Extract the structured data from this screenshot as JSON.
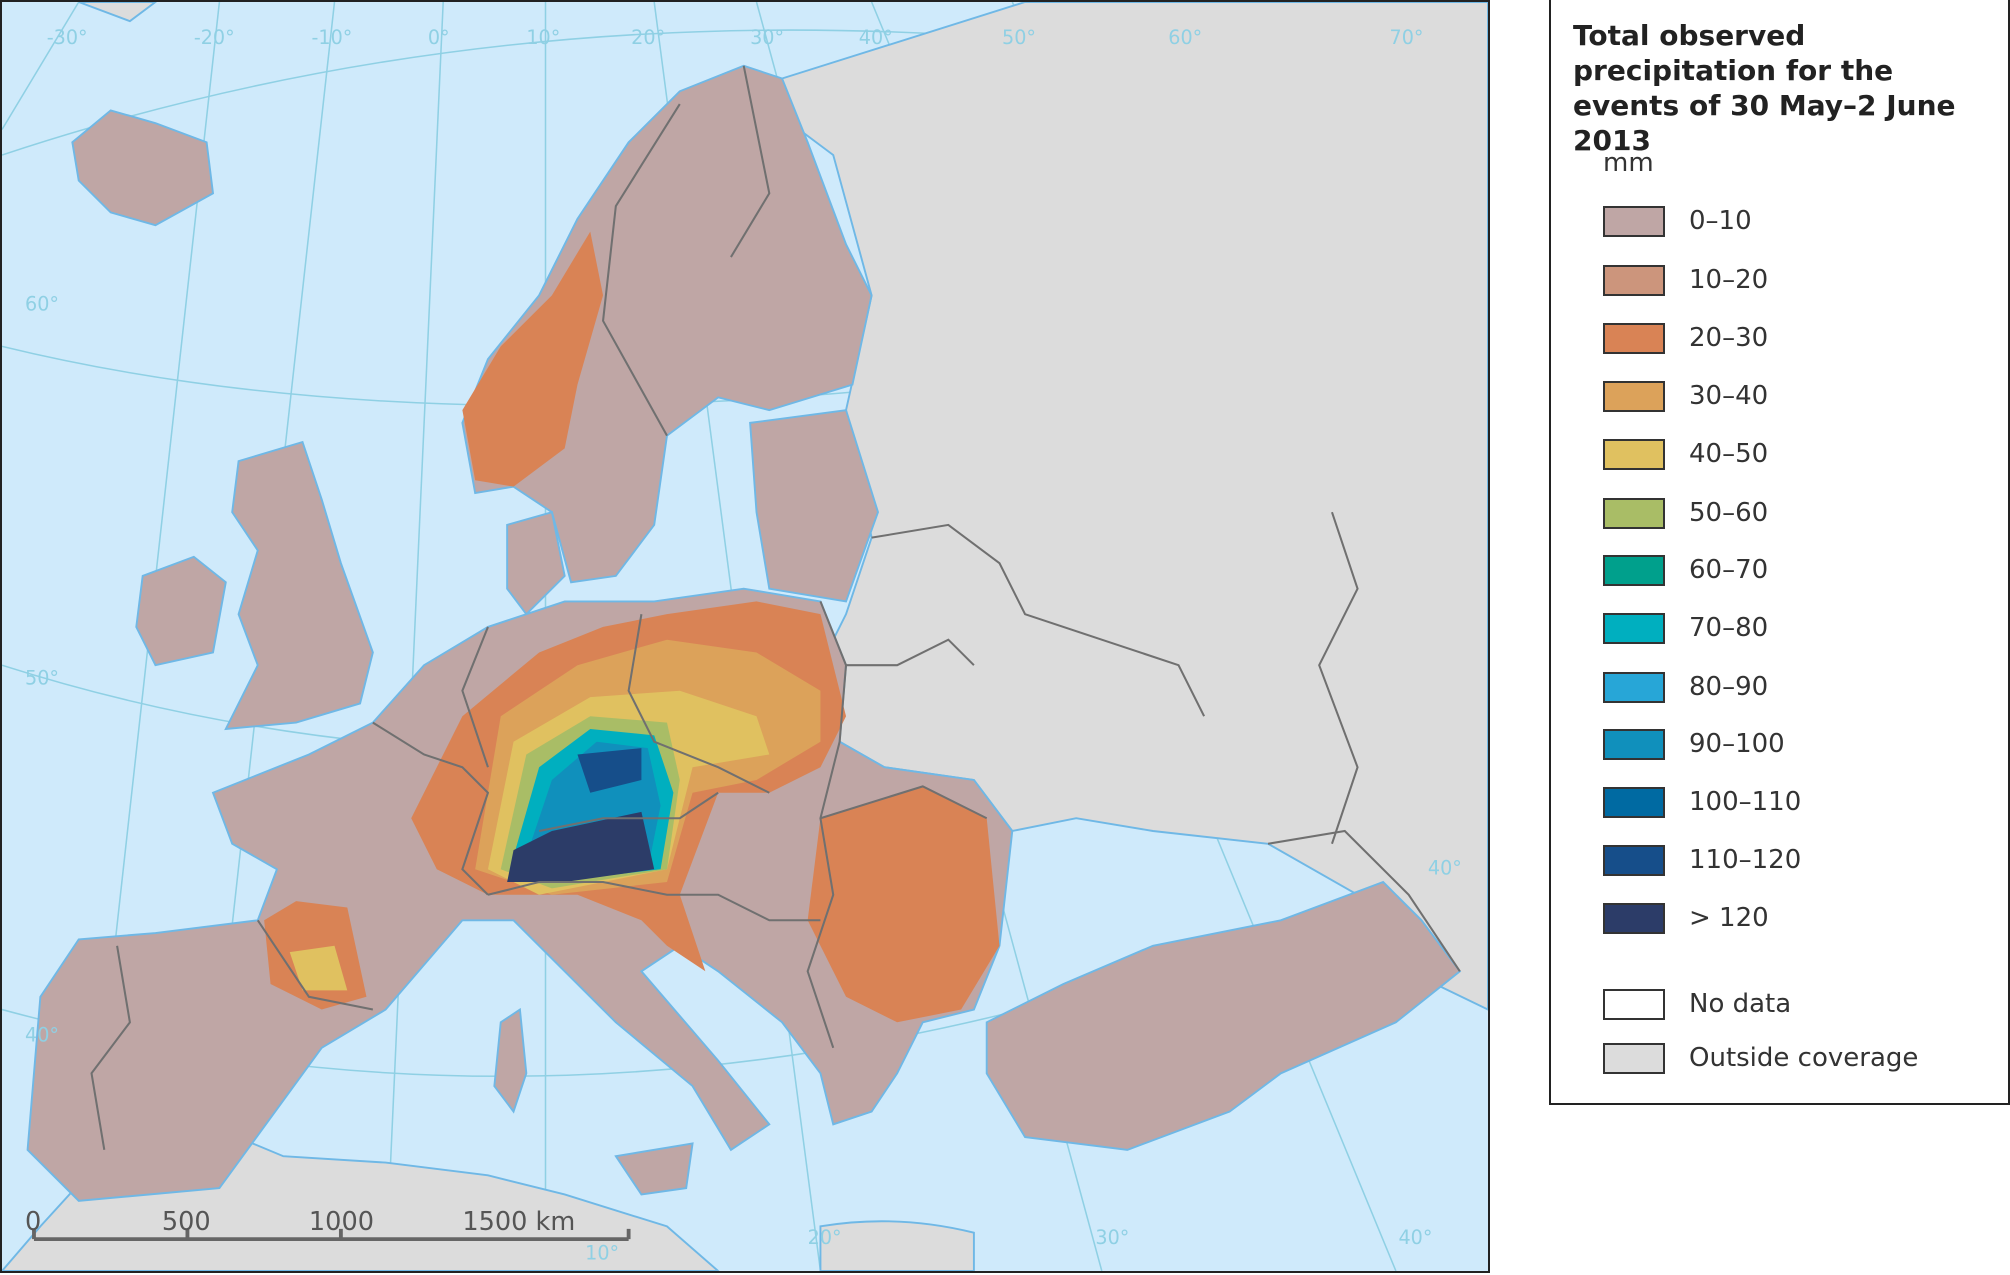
{
  "legend": {
    "title": "Total observed precipitation for the events of 30 May–2 June 2013",
    "unit": "mm",
    "classes": [
      {
        "label": "0–10",
        "color": "#bfa6a5"
      },
      {
        "label": "10–20",
        "color": "#cc957c"
      },
      {
        "label": "20–30",
        "color": "#d98355"
      },
      {
        "label": "30–40",
        "color": "#dca25a"
      },
      {
        "label": "40–50",
        "color": "#e0c160"
      },
      {
        "label": "50–60",
        "color": "#a9bd66"
      },
      {
        "label": "60–70",
        "color": "#00a08c"
      },
      {
        "label": "70–80",
        "color": "#00afbf"
      },
      {
        "label": "80–90",
        "color": "#27a6d7"
      },
      {
        "label": "90–100",
        "color": "#1090bc"
      },
      {
        "label": "100–110",
        "color": "#006aa2"
      },
      {
        "label": "110–120",
        "color": "#164e8a"
      },
      {
        "label": "> 120",
        "color": "#2c3c68"
      }
    ],
    "extra": [
      {
        "label": "No data",
        "color": "#ffffff"
      },
      {
        "label": "Outside coverage",
        "color": "#dcdcdc"
      }
    ]
  },
  "map": {
    "sea_color": "#cfeafb",
    "graticule_top": [
      "-30°",
      "-20°",
      "-10°",
      "0°",
      "10°",
      "20°",
      "30°",
      "40°",
      "50°",
      "60°",
      "70°"
    ],
    "graticule_left": [
      "60°",
      "50°",
      "40°"
    ],
    "graticule_bottom": [
      "10°",
      "20°",
      "30°",
      "40°"
    ],
    "graticule_right": [
      "40°"
    ],
    "scale_bar": {
      "ticks": [
        "0",
        "500",
        "1000",
        "1500 km"
      ]
    }
  }
}
